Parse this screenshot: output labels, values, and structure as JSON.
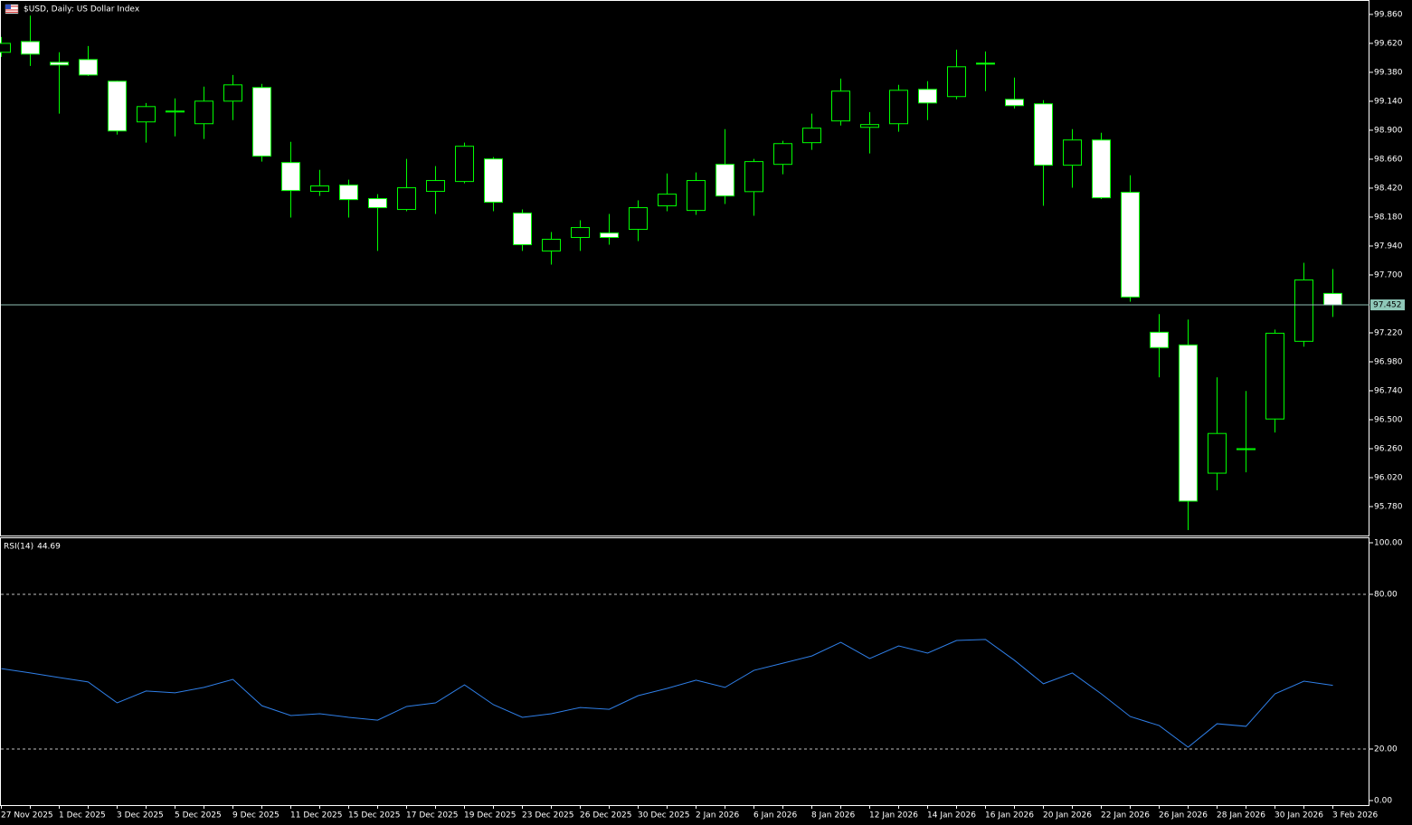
{
  "chart_data": [
    {
      "type": "candlestick",
      "title": "$USD, Daily: US Dollar Index",
      "categories": [
        "27 Nov 2025",
        null,
        "1 Dec 2025",
        null,
        "3 Dec 2025",
        null,
        "5 Dec 2025",
        null,
        "9 Dec 2025",
        null,
        "11 Dec 2025",
        null,
        "15 Dec 2025",
        null,
        "17 Dec 2025",
        null,
        "19 Dec 2025",
        null,
        "23 Dec 2025",
        null,
        "26 Dec 2025",
        null,
        "30 Dec 2025",
        null,
        "2 Jan 2026",
        null,
        "6 Jan 2026",
        null,
        "8 Jan 2026",
        null,
        "12 Jan 2026",
        null,
        "14 Jan 2026",
        null,
        "16 Jan 2026",
        null,
        "20 Jan 2026",
        null,
        "22 Jan 2026",
        null,
        "26 Jan 2026",
        null,
        "28 Jan 2026",
        null,
        "30 Jan 2026",
        null,
        "3 Feb 2026"
      ],
      "open": [
        99.546,
        99.635,
        99.463,
        99.486,
        99.306,
        98.969,
        99.051,
        98.954,
        99.141,
        99.254,
        98.632,
        98.393,
        98.445,
        98.333,
        98.243,
        98.393,
        98.475,
        98.662,
        98.213,
        97.899,
        98.011,
        98.048,
        98.078,
        98.273,
        98.235,
        98.617,
        98.391,
        98.617,
        98.797,
        98.977,
        98.924,
        98.954,
        99.239,
        99.179,
        99.456,
        99.156,
        99.119,
        98.61,
        98.819,
        98.385,
        97.225,
        97.12,
        96.057,
        96.252,
        96.506,
        97.15,
        97.547
      ],
      "high": [
        99.673,
        99.85,
        99.546,
        99.598,
        99.31,
        99.126,
        99.164,
        99.261,
        99.358,
        99.284,
        98.804,
        98.572,
        98.49,
        98.37,
        98.662,
        98.602,
        98.797,
        98.677,
        98.243,
        98.056,
        98.153,
        98.206,
        98.318,
        98.542,
        98.55,
        98.909,
        98.662,
        98.812,
        99.037,
        99.328,
        99.051,
        99.276,
        99.306,
        99.568,
        99.553,
        99.336,
        99.149,
        98.909,
        98.879,
        98.527,
        97.375,
        97.33,
        96.851,
        96.738,
        97.247,
        97.801,
        97.749
      ],
      "low": [
        99.508,
        99.433,
        99.037,
        99.35,
        98.864,
        98.797,
        98.849,
        98.827,
        98.984,
        98.64,
        98.176,
        98.355,
        98.176,
        97.899,
        98.228,
        98.206,
        98.46,
        98.228,
        97.899,
        97.786,
        97.899,
        97.951,
        97.981,
        98.228,
        98.198,
        98.288,
        98.191,
        98.535,
        98.737,
        98.939,
        98.707,
        98.887,
        98.984,
        99.156,
        99.224,
        99.081,
        98.273,
        98.423,
        98.33,
        97.479,
        96.851,
        95.585,
        95.915,
        96.064,
        96.394,
        97.105,
        97.352
      ],
      "close": [
        99.62,
        99.531,
        99.441,
        99.358,
        98.894,
        99.096,
        99.059,
        99.141,
        99.276,
        98.685,
        98.4,
        98.438,
        98.325,
        98.258,
        98.423,
        98.483,
        98.767,
        98.303,
        97.951,
        97.996,
        98.093,
        98.011,
        98.258,
        98.37,
        98.483,
        98.355,
        98.64,
        98.789,
        98.917,
        99.224,
        98.947,
        99.231,
        99.126,
        99.426,
        99.448,
        99.104,
        98.61,
        98.819,
        98.34,
        97.517,
        97.098,
        95.825,
        96.386,
        96.26,
        97.217,
        97.659,
        97.452
      ],
      "up_color": "#000000",
      "down_color": "#ffffff",
      "line_color": "#00ff00",
      "ylim": [
        95.54,
        99.972
      ],
      "yticks": [
        {
          "value": 99.86,
          "label": "99.860"
        },
        {
          "value": 99.62,
          "label": "99.620"
        },
        {
          "value": 99.38,
          "label": "99.380"
        },
        {
          "value": 99.14,
          "label": "99.140"
        },
        {
          "value": 98.9,
          "label": "98.900"
        },
        {
          "value": 98.66,
          "label": "98.660"
        },
        {
          "value": 98.42,
          "label": "98.420"
        },
        {
          "value": 98.18,
          "label": "98.180"
        },
        {
          "value": 97.94,
          "label": "97.940"
        },
        {
          "value": 97.7,
          "label": "97.700"
        },
        {
          "value": 97.22,
          "label": "97.220"
        },
        {
          "value": 96.98,
          "label": "96.980"
        },
        {
          "value": 96.74,
          "label": "96.740"
        },
        {
          "value": 96.5,
          "label": "96.500"
        },
        {
          "value": 96.26,
          "label": "96.260"
        },
        {
          "value": 96.02,
          "label": "96.020"
        },
        {
          "value": 95.78,
          "label": "95.780"
        }
      ]
    },
    {
      "type": "line",
      "series": [
        {
          "name": "RSI(14)",
          "color": "#2f7fe8",
          "values": [
            51.2,
            49.5,
            47.7,
            46.0,
            37.9,
            42.5,
            41.8,
            43.9,
            47.0,
            36.8,
            33.0,
            33.7,
            32.3,
            31.2,
            36.5,
            37.9,
            44.9,
            37.2,
            32.3,
            33.7,
            36.1,
            35.4,
            40.7,
            43.5,
            46.7,
            43.9,
            50.5,
            53.3,
            56.1,
            61.4,
            55.1,
            60.0,
            57.2,
            62.1,
            62.5,
            54.4,
            45.3,
            49.5,
            41.4,
            32.6,
            29.1,
            20.7,
            29.8,
            28.8,
            41.4,
            46.3,
            44.69
          ]
        }
      ],
      "ylim": [
        -1.75,
        101.75
      ],
      "yticks": [
        {
          "value": 100,
          "label": "100.00"
        },
        {
          "value": 80,
          "label": "80.00"
        },
        {
          "value": 20,
          "label": "20.00"
        },
        {
          "value": 0,
          "label": "0.00"
        }
      ]
    }
  ]
}
